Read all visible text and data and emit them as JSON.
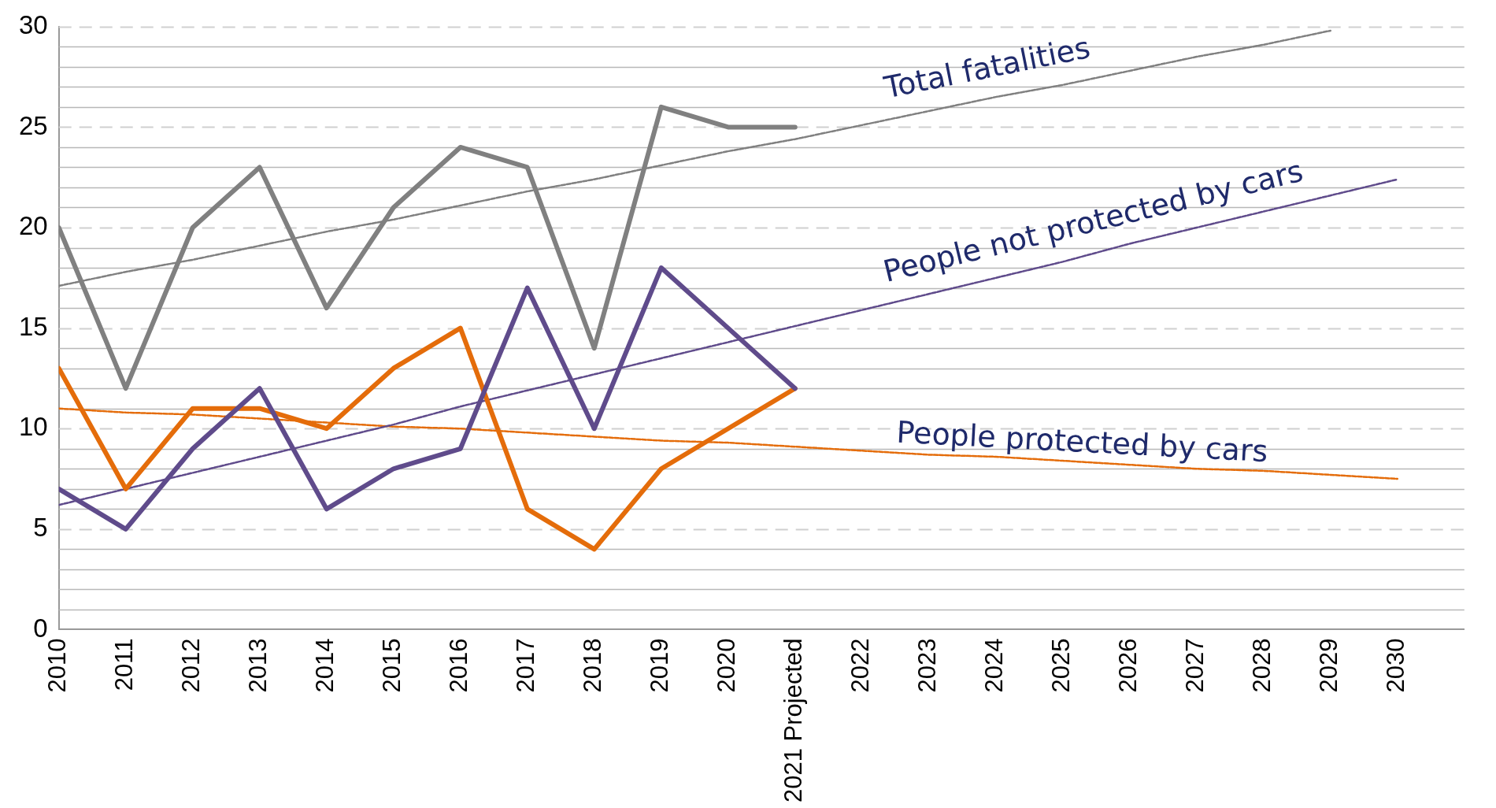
{
  "chart_data": {
    "type": "line",
    "categories": [
      "2010",
      "2011",
      "2012",
      "2013",
      "2014",
      "2015",
      "2016",
      "2017",
      "2018",
      "2019",
      "2020",
      "2021 Projected",
      "2022",
      "2023",
      "2024",
      "2025",
      "2026",
      "2027",
      "2028",
      "2029",
      "2030",
      null
    ],
    "series": [
      {
        "name": "Total fatalities",
        "color": "#808080",
        "values": [
          20,
          12,
          20,
          23,
          16,
          21,
          24,
          23,
          14,
          26,
          25,
          25,
          null,
          null,
          null,
          null,
          null,
          null,
          null,
          null,
          null,
          null
        ]
      },
      {
        "name": "People not protected by cars",
        "color": "#5f4b8b",
        "values": [
          7,
          5,
          9,
          12,
          6,
          8,
          9,
          17,
          10,
          18,
          15,
          12,
          null,
          null,
          null,
          null,
          null,
          null,
          null,
          null,
          null,
          null
        ]
      },
      {
        "name": "People protected by cars",
        "color": "#e46c0a",
        "values": [
          13,
          7,
          11,
          11,
          10,
          13,
          15,
          6,
          4,
          8,
          10,
          12,
          null,
          null,
          null,
          null,
          null,
          null,
          null,
          null,
          null,
          null
        ]
      },
      {
        "type": "line",
        "color": "#808080",
        "line_style": "dashed",
        "values": [
          17.1,
          17.8,
          18.4,
          19.1,
          19.8,
          20.4,
          21.1,
          21.8,
          22.4,
          23.1,
          23.8,
          24.4,
          25.1,
          25.8,
          26.5,
          27.1,
          27.8,
          28.5,
          29.1,
          29.8,
          null,
          null
        ]
      },
      {
        "type": "line",
        "color": "#5f4b8b",
        "line_style": "dashed",
        "values": [
          6.2,
          7.0,
          7.8,
          8.6,
          9.4,
          10.2,
          11.1,
          11.9,
          12.7,
          13.5,
          14.3,
          15.1,
          15.9,
          16.7,
          17.5,
          18.3,
          19.2,
          20.0,
          20.8,
          21.6,
          22.4,
          null
        ]
      },
      {
        "type": "line",
        "color": "#e46c0a",
        "line_style": "dashed",
        "values": [
          11.0,
          10.8,
          10.7,
          10.5,
          10.3,
          10.1,
          10.0,
          9.8,
          9.6,
          9.4,
          9.3,
          9.1,
          8.9,
          8.7,
          8.6,
          8.4,
          8.2,
          8.0,
          7.9,
          7.7,
          7.5,
          null
        ]
      }
    ],
    "ylim": [
      0,
      30
    ],
    "yticks": [
      0,
      {
        "value": 1,
        "label": null
      },
      {
        "value": 2,
        "label": null
      },
      {
        "value": 3,
        "label": null
      },
      {
        "value": 4,
        "label": null
      },
      5,
      {
        "value": 6,
        "label": null
      },
      {
        "value": 7,
        "label": null
      },
      {
        "value": 8,
        "label": null
      },
      {
        "value": 9,
        "label": null
      },
      10,
      {
        "value": 11,
        "label": null
      },
      {
        "value": 12,
        "label": null
      },
      {
        "value": 13,
        "label": null
      },
      {
        "value": 14,
        "label": null
      },
      15,
      {
        "value": 16,
        "label": null
      },
      {
        "value": 17,
        "label": null
      },
      {
        "value": 18,
        "label": null
      },
      {
        "value": 19,
        "label": null
      },
      20,
      {
        "value": 21,
        "label": null
      },
      {
        "value": 22,
        "label": null
      },
      {
        "value": 23,
        "label": null
      },
      {
        "value": 24,
        "label": null
      },
      25,
      {
        "value": 26,
        "label": null
      },
      {
        "value": 27,
        "label": null
      },
      {
        "value": 28,
        "label": null
      },
      {
        "value": 29,
        "label": null
      },
      30
    ],
    "grid": "y",
    "legend": false,
    "marker": "none"
  }
}
